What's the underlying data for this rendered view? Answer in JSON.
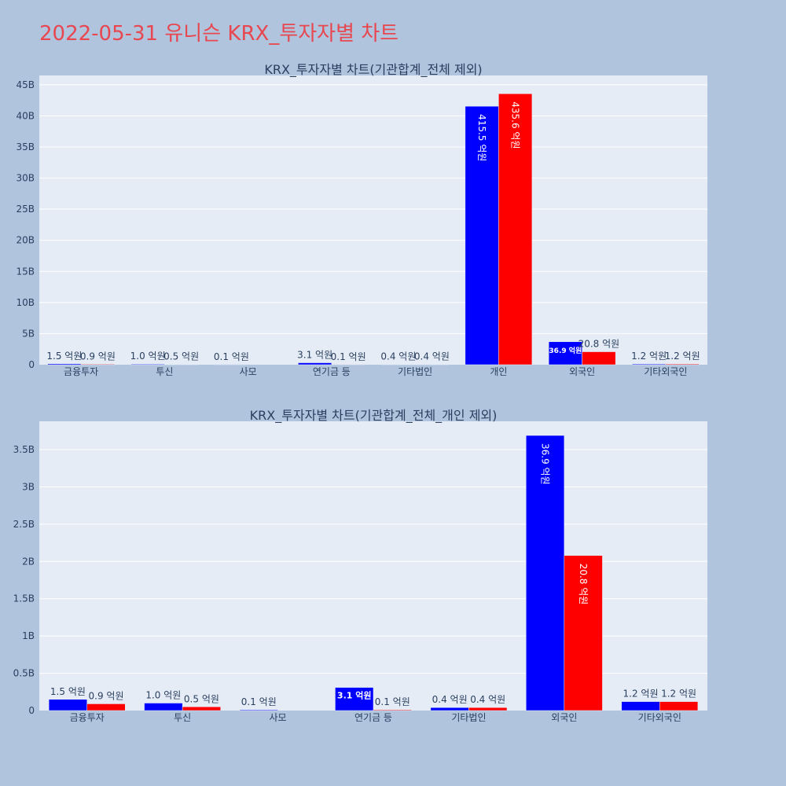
{
  "title": "2022-05-31 유니슨 KRX_투자자별 차트",
  "colors": {
    "buy": "#0000ff",
    "sell": "#ff0000",
    "title": "#e8474f",
    "plot_bg": "#e5ecf6",
    "page_bg": "#b0c4de"
  },
  "chart_data": [
    {
      "type": "bar",
      "title": "KRX_투자자별 차트(기관합계_전체 제외)",
      "categories": [
        "금융투자",
        "투신",
        "사모",
        "연기금 등",
        "기타법인",
        "개인",
        "외국인",
        "기타외국인"
      ],
      "yticks": [
        "0",
        "5B",
        "10B",
        "15B",
        "20B",
        "25B",
        "30B",
        "35B",
        "40B",
        "45B"
      ],
      "ylim": [
        0,
        46.5
      ],
      "grid": true,
      "series": [
        {
          "values": [
            0.15,
            0.1,
            0.01,
            0.31,
            0.04,
            41.55,
            3.69,
            0.12
          ],
          "labels": [
            "1.5 억원",
            "1.0 억원",
            "0.1 억원",
            "3.1 억원",
            "0.4 억원",
            "415.5 억원",
            "36.9 억원",
            "1.2 억원"
          ]
        },
        {
          "values": [
            0.09,
            0.05,
            0.0,
            0.01,
            0.04,
            43.56,
            2.08,
            0.12
          ],
          "labels": [
            "0.9 억원",
            "0.5 억원",
            "",
            "0.1 억원",
            "0.4 억원",
            "435.6 억원",
            "20.8 억원",
            "1.2 억원"
          ]
        }
      ]
    },
    {
      "type": "bar",
      "title": "KRX_투자자별 차트(기관합계_전체_개인 제외)",
      "categories": [
        "금융투자",
        "투신",
        "사모",
        "연기금 등",
        "기타법인",
        "외국인",
        "기타외국인"
      ],
      "yticks": [
        "0",
        "0.5B",
        "1B",
        "1.5B",
        "2B",
        "2.5B",
        "3B",
        "3.5B"
      ],
      "ylim": [
        0,
        3.88
      ],
      "grid": true,
      "series": [
        {
          "values": [
            0.15,
            0.1,
            0.01,
            0.31,
            0.04,
            3.69,
            0.12
          ],
          "labels": [
            "1.5 억원",
            "1.0 억원",
            "0.1 억원",
            "3.1 억원",
            "0.4 억원",
            "36.9 억원",
            "1.2 억원"
          ]
        },
        {
          "values": [
            0.09,
            0.05,
            0.0,
            0.01,
            0.04,
            2.08,
            0.12
          ],
          "labels": [
            "0.9 억원",
            "0.5 억원",
            "",
            "0.1 억원",
            "0.4 억원",
            "20.8 억원",
            "1.2 억원"
          ]
        }
      ]
    }
  ]
}
